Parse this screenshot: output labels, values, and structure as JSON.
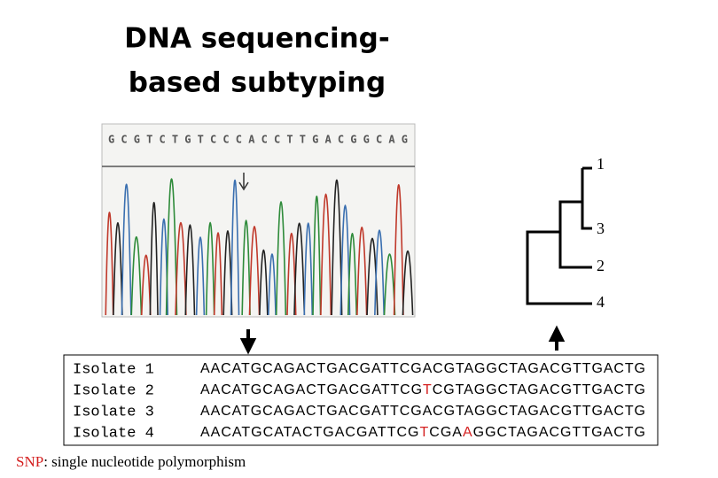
{
  "title": [
    "DNA sequencing-",
    "based subtyping"
  ],
  "chromatogram_sequence": "GCGTCTGTCCCACCTTGACGGCAG",
  "tree": {
    "leaves": [
      "1",
      "3",
      "2",
      "4"
    ]
  },
  "isolates": [
    {
      "label": "Isolate 1",
      "segments": [
        {
          "text": "AACATGCAGACTGACGATTCGACGTAGGCTAGACGTTGACTG",
          "color": "#000000"
        }
      ]
    },
    {
      "label": "Isolate 2",
      "segments": [
        {
          "text": "AACATGCAGACTGACGATTCG",
          "color": "#000000"
        },
        {
          "text": "T",
          "color": "#d42020"
        },
        {
          "text": "CGTAGGCTAGACGTTGACTG",
          "color": "#000000"
        }
      ]
    },
    {
      "label": "Isolate 3",
      "segments": [
        {
          "text": "AACATGCAGACTGACGATTCGACGTAGGCTAGACGTTGACTG",
          "color": "#000000"
        }
      ]
    },
    {
      "label": "Isolate 4",
      "segments": [
        {
          "text": "AACATGCATACTGACGATTCG",
          "color": "#000000"
        },
        {
          "text": "T",
          "color": "#d42020"
        },
        {
          "text": "CGA",
          "color": "#000000"
        },
        {
          "text": "A",
          "color": "#d42020"
        },
        {
          "text": "GGCTAGACGTTGACTG",
          "color": "#000000"
        }
      ]
    }
  ],
  "footnote": {
    "term": "SNP",
    "term_color": "#d42020",
    "definition": ": single nucleotide polymorphism"
  }
}
